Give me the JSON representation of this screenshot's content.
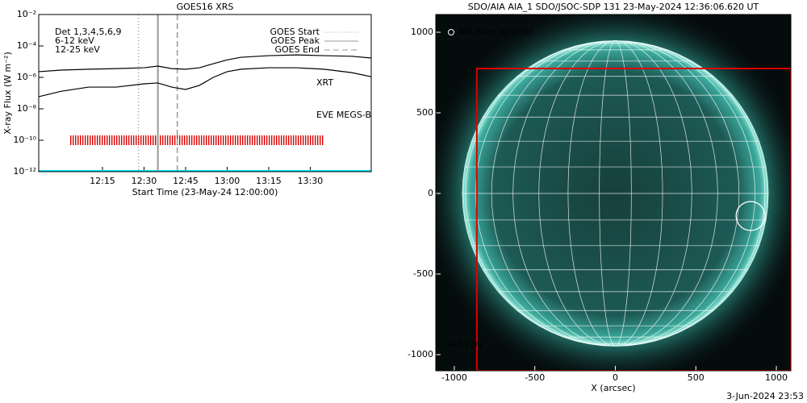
{
  "chart_data": [
    {
      "type": "line",
      "title": "GOES16 XRS",
      "xlabel": "Start Time (23-May-24 12:00:00)",
      "ylabel": "X-ray Flux (W m⁻²)",
      "log_y": true,
      "xlim": [
        -8,
        112
      ],
      "ylim": [
        1e-12,
        0.01
      ],
      "xticks": [
        {
          "value": 15,
          "label": "12:15"
        },
        {
          "value": 30,
          "label": "12:30"
        },
        {
          "value": 45,
          "label": "12:45"
        },
        {
          "value": 60,
          "label": "13:00"
        },
        {
          "value": 75,
          "label": "13:15"
        },
        {
          "value": 90,
          "label": "13:30"
        }
      ],
      "yticks": [
        {
          "value": 1e-12,
          "label": "10⁻¹²"
        },
        {
          "value": 1e-10,
          "label": "10⁻¹⁰"
        },
        {
          "value": 1e-08,
          "label": "10⁻⁸"
        },
        {
          "value": 1e-06,
          "label": "10⁻⁶"
        },
        {
          "value": 0.0001,
          "label": "10⁻⁴"
        },
        {
          "value": 0.01,
          "label": "10⁻²"
        }
      ],
      "x": [
        -8,
        0,
        10,
        20,
        30,
        35,
        40,
        45,
        50,
        55,
        60,
        65,
        75,
        85,
        95,
        105,
        112
      ],
      "series": [
        {
          "color": "#000000",
          "values": [
            2.3e-06,
            2.9e-06,
            3.3e-06,
            3.6e-06,
            4.1e-06,
            5.2e-06,
            3.6e-06,
            3.3e-06,
            4.1e-06,
            7.4e-06,
            1.3e-05,
            1.9e-05,
            2.4e-05,
            2.7e-05,
            2.4e-05,
            2.2e-05,
            1.7e-05
          ]
        },
        {
          "color": "#000000",
          "values": [
            5.9e-08,
            1.3e-07,
            2.4e-07,
            2.4e-07,
            3.9e-07,
            4.4e-07,
            2.4e-07,
            1.7e-07,
            3.1e-07,
            1e-06,
            2.3e-06,
            3.3e-06,
            4.1e-06,
            4.1e-06,
            3.3e-06,
            2e-06,
            1.1e-06
          ]
        }
      ],
      "events": [
        {
          "label": "GOES Start",
          "x": 28,
          "style": "dotted",
          "color": "#999999"
        },
        {
          "label": "GOES Peak",
          "x": 35,
          "style": "solid",
          "color": "#999999"
        },
        {
          "label": "GOES End",
          "x": 42,
          "style": "dashed",
          "color": "#999999"
        }
      ],
      "annotations": [
        {
          "text": "Det 1,3,4,5,6,9",
          "color": "#000000"
        },
        {
          "text": "6-12 keV",
          "color": "#dd00dd"
        },
        {
          "text": "12-25 keV",
          "color": "#00cc00"
        }
      ],
      "xrt_obs": {
        "label": "XRT",
        "color": "#dd0000",
        "start": 3,
        "end": 95,
        "level": 1e-10
      },
      "eve": {
        "label": "EVE MEGS-B",
        "color": "#00e5ee",
        "level": 1e-12
      }
    },
    {
      "type": "image",
      "title": "SDO/AIA AIA_1 SDO/JSOC-SDP 131 23-May-2024 12:36:06.620 UT",
      "xlabel": "X (arcsec)",
      "xlim": [
        -1115,
        1090
      ],
      "ylim": [
        -1100,
        1110
      ],
      "xticks": [
        -1000,
        -500,
        0,
        500,
        1000
      ],
      "yticks": [
        -1000,
        -500,
        0,
        500,
        1000
      ],
      "solar_radius": 950,
      "flare": {
        "label": "AIA flare location",
        "x": 840,
        "y": -140,
        "r": 90
      },
      "xrt_fov": {
        "label": "XRT FOV",
        "color": "#dd0000",
        "x": [
          -860,
          1090
        ],
        "y": [
          -1100,
          775
        ]
      },
      "footer": "3-Jun-2024 23:53"
    }
  ]
}
